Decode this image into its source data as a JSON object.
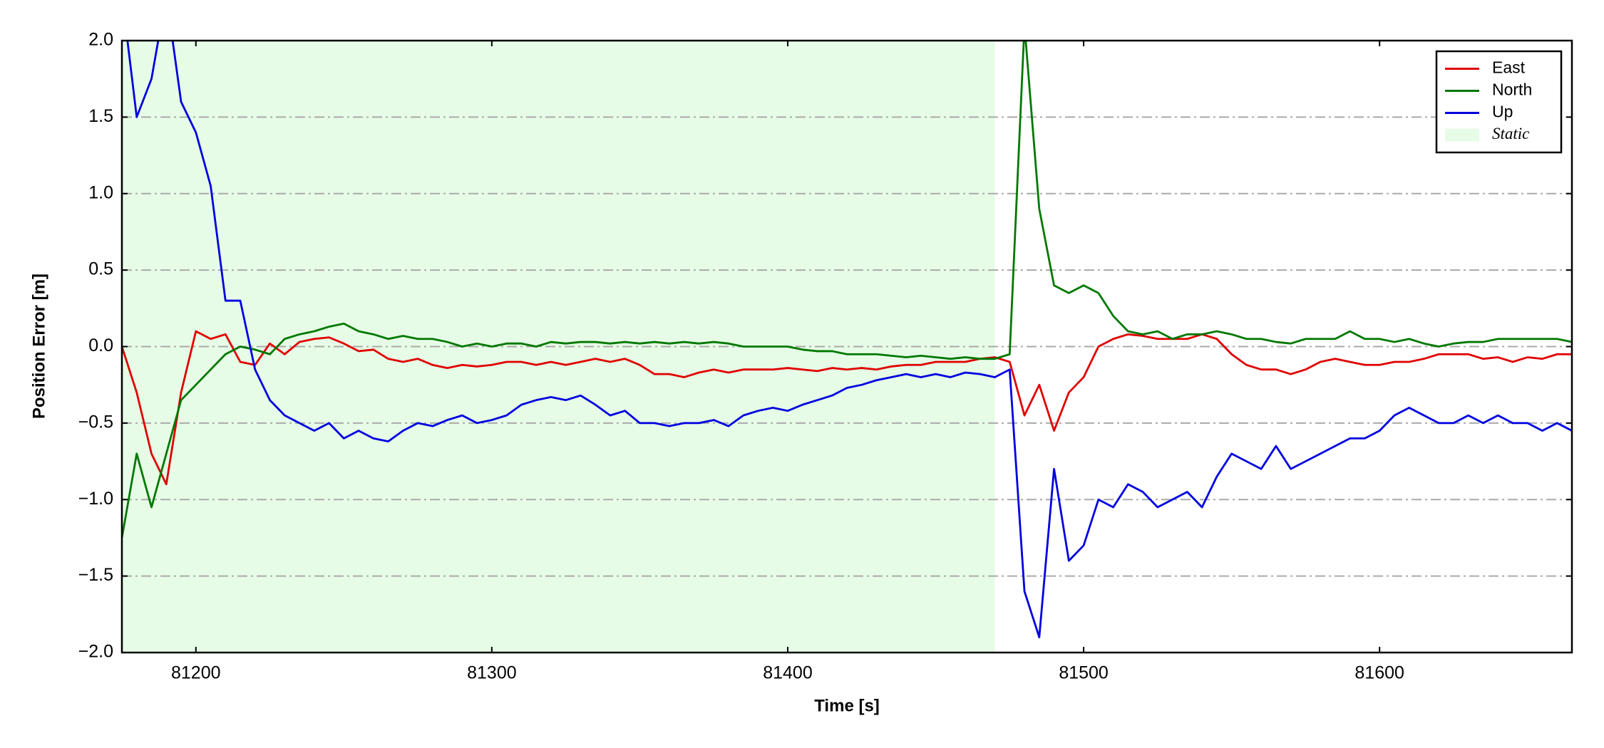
{
  "chart_data": {
    "type": "line",
    "xlabel": "Time [s]",
    "ylabel": "Position Error [m]",
    "xlim": [
      81175,
      81665
    ],
    "ylim": [
      -2,
      2
    ],
    "xticks": [
      81200,
      81300,
      81400,
      81500,
      81600
    ],
    "yticks": [
      {
        "value": -2,
        "label": "−2.0"
      },
      {
        "value": -1.5,
        "label": "−1.5"
      },
      {
        "value": -1,
        "label": "−1.0"
      },
      {
        "value": -0.5,
        "label": "−0.5"
      },
      {
        "value": 0,
        "label": "0.0"
      },
      0.5,
      {
        "value": 1,
        "label": "1.0"
      },
      1.5,
      {
        "value": 2,
        "label": "2.0"
      }
    ],
    "grid": true,
    "legend": "upper right",
    "span": {
      "name": "Static",
      "x": [
        81175,
        81470
      ],
      "color": "#e6fce6"
    },
    "x": [
      81175,
      81180,
      81185,
      81190,
      81195,
      81200,
      81205,
      81210,
      81215,
      81220,
      81225,
      81230,
      81235,
      81240,
      81245,
      81250,
      81255,
      81260,
      81265,
      81270,
      81275,
      81280,
      81285,
      81290,
      81295,
      81300,
      81305,
      81310,
      81315,
      81320,
      81325,
      81330,
      81335,
      81340,
      81345,
      81350,
      81355,
      81360,
      81365,
      81370,
      81375,
      81380,
      81385,
      81390,
      81395,
      81400,
      81405,
      81410,
      81415,
      81420,
      81425,
      81430,
      81435,
      81440,
      81445,
      81450,
      81455,
      81460,
      81465,
      81470,
      81475,
      81480,
      81485,
      81490,
      81495,
      81500,
      81505,
      81510,
      81515,
      81520,
      81525,
      81530,
      81535,
      81540,
      81545,
      81550,
      81555,
      81560,
      81565,
      81570,
      81575,
      81580,
      81585,
      81590,
      81595,
      81600,
      81605,
      81610,
      81615,
      81620,
      81625,
      81630,
      81635,
      81640,
      81645,
      81650,
      81655,
      81660,
      81665
    ],
    "series": [
      {
        "name": "East",
        "color": "#e00000",
        "values": [
          0.0,
          -0.3,
          -0.7,
          -0.9,
          -0.3,
          0.1,
          0.05,
          0.08,
          -0.1,
          -0.12,
          0.02,
          -0.05,
          0.03,
          0.05,
          0.06,
          0.02,
          -0.03,
          -0.02,
          -0.08,
          -0.1,
          -0.08,
          -0.12,
          -0.14,
          -0.12,
          -0.13,
          -0.12,
          -0.1,
          -0.1,
          -0.12,
          -0.1,
          -0.12,
          -0.1,
          -0.08,
          -0.1,
          -0.08,
          -0.12,
          -0.18,
          -0.18,
          -0.2,
          -0.17,
          -0.15,
          -0.17,
          -0.15,
          -0.15,
          -0.15,
          -0.14,
          -0.15,
          -0.16,
          -0.14,
          -0.15,
          -0.14,
          -0.15,
          -0.13,
          -0.12,
          -0.12,
          -0.1,
          -0.1,
          -0.1,
          -0.08,
          -0.07,
          -0.1,
          -0.45,
          -0.25,
          -0.55,
          -0.3,
          -0.2,
          0.0,
          0.05,
          0.08,
          0.07,
          0.05,
          0.05,
          0.05,
          0.08,
          0.05,
          -0.05,
          -0.12,
          -0.15,
          -0.15,
          -0.18,
          -0.15,
          -0.1,
          -0.08,
          -0.1,
          -0.12,
          -0.12,
          -0.1,
          -0.1,
          -0.08,
          -0.05,
          -0.05,
          -0.05,
          -0.08,
          -0.07,
          -0.1,
          -0.07,
          -0.08,
          -0.05,
          -0.05
        ]
      },
      {
        "name": "North",
        "color": "#007800",
        "values": [
          -1.25,
          -0.7,
          -1.05,
          -0.7,
          -0.35,
          -0.25,
          -0.15,
          -0.05,
          0.0,
          -0.02,
          -0.05,
          0.05,
          0.08,
          0.1,
          0.13,
          0.15,
          0.1,
          0.08,
          0.05,
          0.07,
          0.05,
          0.05,
          0.03,
          0.0,
          0.02,
          0.0,
          0.02,
          0.02,
          0.0,
          0.03,
          0.02,
          0.03,
          0.03,
          0.02,
          0.03,
          0.02,
          0.03,
          0.02,
          0.03,
          0.02,
          0.03,
          0.02,
          0.0,
          0.0,
          0.0,
          0.0,
          -0.02,
          -0.03,
          -0.03,
          -0.05,
          -0.05,
          -0.05,
          -0.06,
          -0.07,
          -0.06,
          -0.07,
          -0.08,
          -0.07,
          -0.08,
          -0.08,
          -0.05,
          2.1,
          0.9,
          0.4,
          0.35,
          0.4,
          0.35,
          0.2,
          0.1,
          0.08,
          0.1,
          0.05,
          0.08,
          0.08,
          0.1,
          0.08,
          0.05,
          0.05,
          0.03,
          0.02,
          0.05,
          0.05,
          0.05,
          0.1,
          0.05,
          0.05,
          0.03,
          0.05,
          0.02,
          0.0,
          0.02,
          0.03,
          0.03,
          0.05,
          0.05,
          0.05,
          0.05,
          0.05,
          0.03
        ]
      },
      {
        "name": "Up",
        "color": "#0000e0",
        "values": [
          2.3,
          1.5,
          1.75,
          2.3,
          1.6,
          1.4,
          1.05,
          0.3,
          0.3,
          -0.15,
          -0.35,
          -0.45,
          -0.5,
          -0.55,
          -0.5,
          -0.6,
          -0.55,
          -0.6,
          -0.62,
          -0.55,
          -0.5,
          -0.52,
          -0.48,
          -0.45,
          -0.5,
          -0.48,
          -0.45,
          -0.38,
          -0.35,
          -0.33,
          -0.35,
          -0.32,
          -0.38,
          -0.45,
          -0.42,
          -0.5,
          -0.5,
          -0.52,
          -0.5,
          -0.5,
          -0.48,
          -0.52,
          -0.45,
          -0.42,
          -0.4,
          -0.42,
          -0.38,
          -0.35,
          -0.32,
          -0.27,
          -0.25,
          -0.22,
          -0.2,
          -0.18,
          -0.2,
          -0.18,
          -0.2,
          -0.17,
          -0.18,
          -0.2,
          -0.15,
          -1.6,
          -1.9,
          -0.8,
          -1.4,
          -1.3,
          -1.0,
          -1.05,
          -0.9,
          -0.95,
          -1.05,
          -1.0,
          -0.95,
          -1.05,
          -0.85,
          -0.7,
          -0.75,
          -0.8,
          -0.65,
          -0.8,
          -0.75,
          -0.7,
          -0.65,
          -0.6,
          -0.6,
          -0.55,
          -0.45,
          -0.4,
          -0.45,
          -0.5,
          -0.5,
          -0.45,
          -0.5,
          -0.45,
          -0.5,
          -0.5,
          -0.55,
          -0.5,
          -0.55
        ]
      }
    ]
  }
}
